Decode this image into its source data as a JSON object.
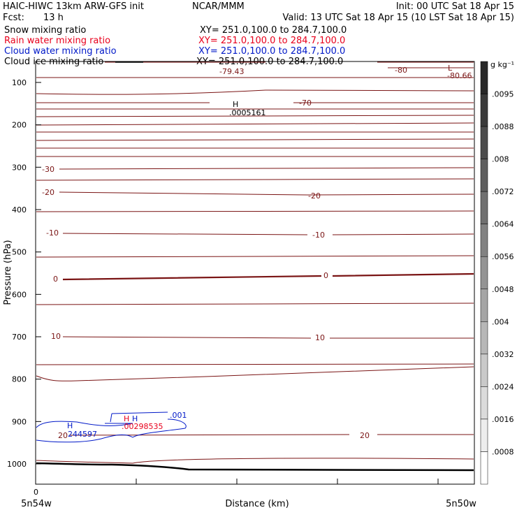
{
  "header": {
    "model": "HAIC-HIWC 13km ARW-GFS init",
    "org": "NCAR/MMM",
    "init": "Init: 00 UTC Sat 18 Apr 15",
    "fcst_label": "Fcst:",
    "fcst_value": "13 h",
    "valid": "Valid: 13 UTC Sat 18 Apr 15 (10 LST Sat 18 Apr 15)"
  },
  "fields": [
    {
      "name": "Snow mixing ratio",
      "xy": "XY= 251.0,100.0 to 284.7,100.0",
      "color": "#000000"
    },
    {
      "name": "Rain water mixing ratio",
      "xy": "XY= 251.0,100.0 to 284.7,100.0",
      "color": "#e8001c"
    },
    {
      "name": "Cloud water mixing ratio",
      "xy": "XY= 251.0,100.0 to 284.7,100.0",
      "color": "#0018c8"
    },
    {
      "name": "Cloud ice mixing ratio",
      "xy": "XY= 251.0,100.0 to 284.7,100.0",
      "color": "#000000"
    }
  ],
  "colorbar": {
    "unit": "g kg⁻¹",
    "ticks": [
      ".0095",
      ".0088",
      ".008",
      ".0072",
      ".0064",
      ".0056",
      ".0048",
      ".004",
      ".0032",
      ".0024",
      ".0016",
      ".0008"
    ]
  },
  "chart_data": {
    "type": "contour",
    "ylabel": "Pressure (hPa)",
    "xlabel": "Distance (km)",
    "yticks": [
      100,
      200,
      300,
      400,
      500,
      600,
      700,
      800,
      900,
      1000
    ],
    "x_origin_label": "0",
    "x_left_label": "5n54w",
    "x_right_label": "5n50w",
    "temperature_labels": [
      {
        "text": "-80",
        "color": "#7a1414"
      },
      {
        "text": "-79.43",
        "color": "#7a1414"
      },
      {
        "text": "-80.66",
        "color": "#7a1414"
      },
      {
        "text": "L",
        "color": "#7a1414"
      },
      {
        "text": "-70",
        "color": "#7a1414"
      },
      {
        "text": "-30",
        "color": "#7a1414"
      },
      {
        "text": "-20",
        "color": "#7a1414"
      },
      {
        "text": "-20",
        "color": "#7a1414"
      },
      {
        "text": "-10",
        "color": "#7a1414"
      },
      {
        "text": "-10",
        "color": "#7a1414"
      },
      {
        "text": "0",
        "color": "#7a1414"
      },
      {
        "text": "0",
        "color": "#7a1414"
      },
      {
        "text": "10",
        "color": "#7a1414"
      },
      {
        "text": "10",
        "color": "#7a1414"
      },
      {
        "text": "20",
        "color": "#7a1414"
      },
      {
        "text": "20",
        "color": "#7a1414"
      }
    ],
    "other_labels": [
      {
        "text": "H",
        "color": "#000000"
      },
      {
        "text": ".0005161",
        "color": "#000000"
      },
      {
        "text": "H",
        "color": "#0018c8"
      },
      {
        "text": "244597",
        "color": "#0018c8"
      },
      {
        "text": "H",
        "color": "#0018c8"
      },
      {
        "text": ".001",
        "color": "#0018c8"
      },
      {
        "text": "H",
        "color": "#e8001c"
      },
      {
        "text": ".00298535",
        "color": "#e8001c"
      }
    ]
  }
}
